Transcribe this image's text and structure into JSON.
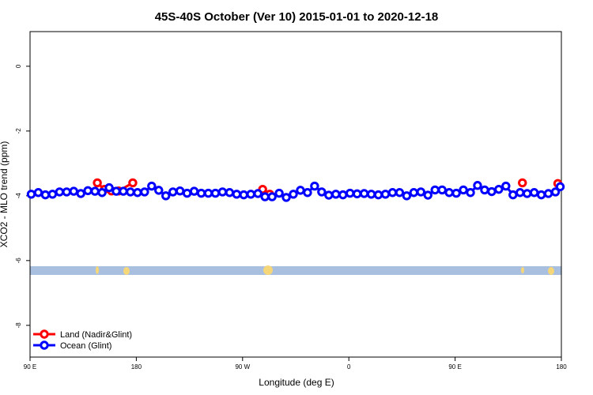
{
  "chart_data": {
    "type": "scatter-line",
    "title": "45S-40S October (Ver 10)   2015-01-01 to 2020-12-18",
    "x_label": "Longitude (deg E)",
    "y_label": "XCO2 - MLO trend (ppm)",
    "xlim": [
      90,
      540
    ],
    "xticks": [
      {
        "value": 90,
        "label": "90 E"
      },
      {
        "value": 180,
        "label": "180"
      },
      {
        "value": 270,
        "label": "90 W"
      },
      {
        "value": 360,
        "label": "0"
      },
      {
        "value": 450,
        "label": "90 E"
      },
      {
        "value": 540,
        "label": "180"
      }
    ],
    "ylim": [
      -8.98,
      1.07
    ],
    "yticks": [
      0,
      -2,
      -4,
      -6,
      -8
    ],
    "legend": "bottom-left",
    "series": [
      {
        "name": "Land (Nadir&Glint)",
        "color": "#ff0000",
        "x": [
          147,
          153,
          159,
          165,
          177,
          183,
          287,
          293,
          300,
          507,
          513,
          537
        ],
        "values": [
          -3.6,
          -3.8,
          -3.85,
          -3.85,
          -3.6,
          null,
          -3.8,
          -3.95,
          null,
          -3.6,
          null,
          -3.62
        ]
      },
      {
        "name": "Ocean (Glint)",
        "color": "#0000ff",
        "x": [
          91,
          97,
          103,
          109,
          115,
          121,
          127,
          133,
          139,
          145,
          151,
          157,
          163,
          169,
          175,
          181,
          187,
          193,
          199,
          205,
          211,
          217,
          223,
          229,
          235,
          241,
          247,
          253,
          259,
          265,
          271,
          277,
          283,
          289,
          295,
          301,
          307,
          313,
          319,
          325,
          331,
          337,
          343,
          349,
          355,
          361,
          367,
          373,
          379,
          385,
          391,
          397,
          403,
          409,
          415,
          421,
          427,
          433,
          439,
          445,
          451,
          457,
          463,
          469,
          475,
          481,
          487,
          493,
          499,
          505,
          511,
          517,
          523,
          529,
          535,
          539
        ],
        "values": [
          -3.95,
          -3.9,
          -3.97,
          -3.95,
          -3.88,
          -3.88,
          -3.86,
          -3.93,
          -3.84,
          -3.86,
          -3.9,
          -3.75,
          -3.86,
          -3.86,
          -3.88,
          -3.9,
          -3.88,
          -3.7,
          -3.83,
          -4.0,
          -3.88,
          -3.85,
          -3.92,
          -3.86,
          -3.92,
          -3.92,
          -3.92,
          -3.88,
          -3.9,
          -3.95,
          -3.97,
          -3.95,
          -3.93,
          -4.03,
          -4.03,
          -3.92,
          -4.05,
          -3.95,
          -3.83,
          -3.9,
          -3.7,
          -3.88,
          -3.98,
          -3.95,
          -3.97,
          -3.92,
          -3.94,
          -3.93,
          -3.95,
          -3.97,
          -3.95,
          -3.9,
          -3.9,
          -4.0,
          -3.9,
          -3.88,
          -3.98,
          -3.82,
          -3.82,
          -3.9,
          -3.92,
          -3.82,
          -3.9,
          -3.68,
          -3.82,
          -3.87,
          -3.8,
          -3.7,
          -3.97,
          -3.9,
          -3.93,
          -3.9,
          -3.97,
          -3.93,
          -3.88,
          -3.72
        ]
      }
    ]
  }
}
